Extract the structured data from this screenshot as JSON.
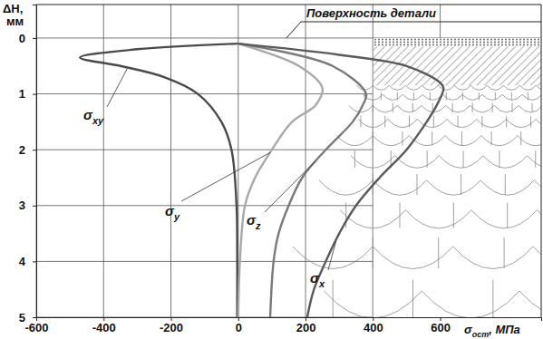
{
  "chart_data": {
    "type": "line",
    "x_label": "σост, МПа",
    "y_label": "ΔH, мм",
    "annotations": [
      {
        "text": "Поверхность детали"
      }
    ],
    "xlim": [
      -600,
      900
    ],
    "xticks": [
      -600,
      -400,
      -200,
      0,
      200,
      400,
      600
    ],
    "ylim": [
      -0.6,
      5
    ],
    "yticks": [
      0,
      1,
      2,
      3,
      4,
      5
    ],
    "grid": true,
    "series": [
      {
        "name": "σxy",
        "color": "#4a4a4a",
        "x": [
          0,
          -300,
          -470,
          -350,
          -220,
          -120,
          -50,
          -20,
          -5,
          -3,
          -3
        ],
        "values": [
          0.1,
          0.2,
          0.35,
          0.5,
          0.7,
          1.0,
          1.5,
          2.0,
          3.0,
          4.0,
          5.0
        ]
      },
      {
        "name": "σy",
        "color": "#a8a8a8",
        "x": [
          0,
          180,
          250,
          230,
          160,
          100,
          50,
          20,
          5,
          0
        ],
        "values": [
          0.1,
          0.5,
          0.9,
          1.2,
          1.5,
          2.0,
          2.5,
          3.0,
          4.0,
          5.0
        ]
      },
      {
        "name": "σz",
        "color": "#7a7a7a",
        "x": [
          0,
          280,
          380,
          370,
          340,
          260,
          190,
          150,
          120,
          105,
          95
        ],
        "values": [
          0.1,
          0.5,
          1.0,
          1.2,
          1.5,
          2.0,
          2.5,
          3.0,
          3.5,
          4.0,
          5.0
        ]
      },
      {
        "name": "σx",
        "color": "#5a5a5a",
        "x": [
          0,
          300,
          500,
          600,
          610,
          590,
          560,
          500,
          420,
          350,
          300,
          260,
          225,
          205
        ],
        "values": [
          0.1,
          0.3,
          0.5,
          0.8,
          0.9,
          1.2,
          1.5,
          2.0,
          2.5,
          3.0,
          3.5,
          4.0,
          4.5,
          5.0
        ]
      }
    ]
  }
}
